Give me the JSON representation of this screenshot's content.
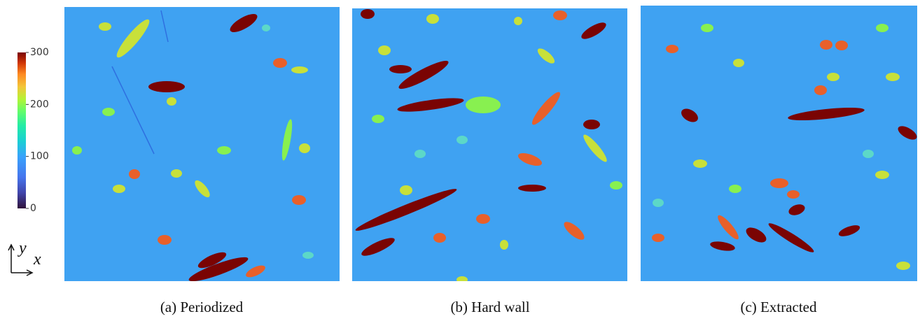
{
  "colorbar": {
    "range": [
      0,
      300
    ],
    "ticks": [
      0,
      100,
      200,
      300
    ]
  },
  "axes": {
    "y": "y",
    "x": "x"
  },
  "panels": [
    {
      "caption": "(a) Periodized"
    },
    {
      "caption": "(b) Hard wall"
    },
    {
      "caption": "(c) Extracted"
    }
  ]
}
